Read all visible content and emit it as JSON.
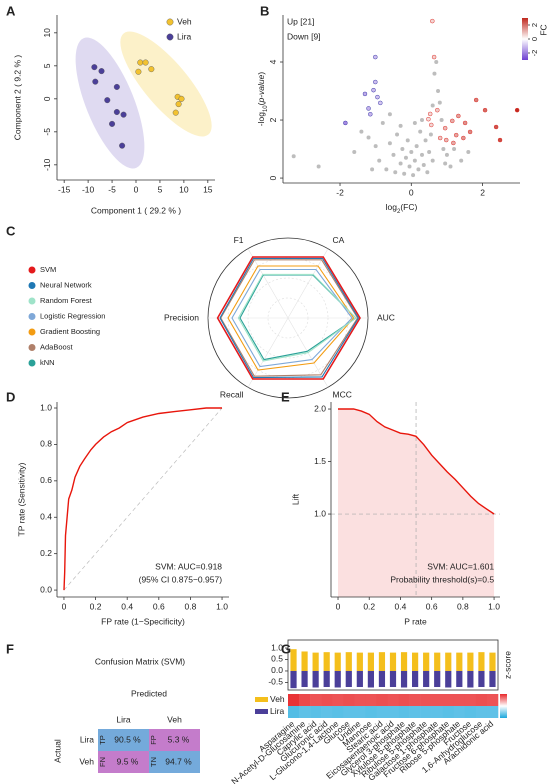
{
  "panel_labels": [
    "A",
    "B",
    "C",
    "D",
    "E",
    "F",
    "G"
  ],
  "chart_data": [
    {
      "type": "scatter",
      "xlabel": "Component 1 ( 29.2 % )",
      "ylabel": "Component 2 ( 9.2 % )",
      "xlim": [
        -16.5,
        16.5
      ],
      "ylim": [
        -12.3,
        12.7
      ],
      "xticks": [
        -15,
        -10,
        -5,
        0,
        5,
        10,
        15
      ],
      "yticks": [
        -10,
        -5,
        0,
        5,
        10
      ],
      "series": [
        {
          "name": "Veh",
          "color": "#f2c230",
          "x": [
            0.9,
            2,
            0.5,
            3.2,
            8.7,
            9.5,
            8.9,
            8.3
          ],
          "y": [
            5.5,
            5.5,
            4.1,
            4.5,
            0.3,
            0,
            -0.8,
            -2.1
          ]
        },
        {
          "name": "Lira",
          "color": "#4b3f99",
          "x": [
            -8.7,
            -7.2,
            -8.5,
            -4,
            -6,
            -4,
            -2.6,
            -5,
            -2.9
          ],
          "y": [
            4.8,
            4.2,
            2.6,
            1.8,
            -0.2,
            -2,
            -2.4,
            -3.8,
            -7.1
          ]
        }
      ]
    },
    {
      "type": "volcano",
      "xlabel": "log",
      "xlabel_sub": "2",
      "xlabel_rest": "(FC)",
      "ylabel": "-log",
      "ylabel_sub": "10",
      "ylabel_rest": "(",
      "ylabel_italic": "p-value",
      "ylabel_end": ")",
      "xlim": [
        -3.6,
        3.05
      ],
      "ylim": [
        -0.17,
        5.62
      ],
      "xticks": [
        -2,
        0,
        2
      ],
      "yticks": [
        0,
        2,
        4
      ],
      "colorscale": {
        "title": "FC",
        "lim": [
          -3,
          3
        ],
        "ticks": [
          -2,
          0,
          2
        ],
        "colors": [
          "#6d3fd0",
          "#ffffff",
          "#c0281e"
        ]
      },
      "series": [
        {
          "name": "Up [21]",
          "color": "#e0302a",
          "x": [
            0.59,
            0.64,
            0.53,
            0.56,
            0.95,
            1.15,
            1.32,
            1.51,
            1.26,
            1.46,
            1.82,
            2.07,
            2.49,
            2.38,
            2.97,
            0.81,
            0.98,
            1.18,
            0.73,
            1.65,
            0.48
          ],
          "y": [
            5.41,
            4.17,
            2.21,
            1.83,
            1.72,
            1.97,
            2.14,
            1.9,
            1.48,
            1.38,
            2.69,
            2.34,
            1.31,
            1.76,
            2.34,
            1.38,
            1.31,
            1.21,
            2.34,
            1.59,
            2.03
          ]
        },
        {
          "name": "Down [9]",
          "color": "#3a3aa8",
          "x": [
            -1.01,
            -1.01,
            -1.06,
            -0.95,
            -0.87,
            -1.85,
            -1.2,
            -1.3,
            -1.15
          ],
          "y": [
            4.17,
            3.31,
            3.03,
            2.79,
            2.59,
            1.9,
            2.4,
            2.9,
            2.2
          ]
        },
        {
          "color": "#bdbdbd",
          "x": [
            -3.3,
            -2.6,
            -1.6,
            -1.4,
            -1.2,
            -1.0,
            -0.9,
            -0.8,
            -0.7,
            -0.6,
            -0.5,
            -0.45,
            -0.4,
            -0.3,
            -0.25,
            -0.2,
            -0.15,
            -0.1,
            -0.05,
            0,
            0.05,
            0.1,
            0.15,
            0.2,
            0.25,
            0.3,
            0.35,
            0.4,
            0.45,
            0.5,
            0.55,
            0.6,
            0.65,
            0.7,
            0.75,
            0.8,
            0.85,
            0.9,
            0.95,
            1.0,
            1.1,
            1.2,
            1.4,
            1.6,
            0.6,
            -0.6,
            -1.1,
            0.3,
            -0.3,
            0.1
          ],
          "y": [
            0.75,
            0.4,
            0.9,
            1.6,
            1.4,
            1.1,
            0.6,
            1.9,
            0.3,
            1.2,
            0.8,
            0.2,
            1.5,
            0.5,
            1.0,
            0.15,
            0.7,
            1.3,
            0.4,
            0.9,
            0.1,
            0.6,
            1.1,
            0.3,
            1.6,
            0.8,
            0.45,
            1.3,
            0.2,
            0.9,
            1.5,
            0.6,
            3.6,
            4.0,
            3.0,
            2.6,
            2.0,
            1.0,
            0.5,
            0.8,
            0.4,
            1.0,
            0.6,
            0.9,
            2.5,
            2.2,
            0.3,
            2.0,
            1.8,
            1.9
          ]
        }
      ]
    },
    {
      "type": "radar",
      "axes": [
        "F1",
        "CA",
        "AUC",
        "MCC",
        "Recall",
        "Precision"
      ],
      "rlim": [
        0,
        1
      ],
      "grid": true,
      "series": [
        {
          "name": "SVM",
          "color": "#e41a1c",
          "values": [
            0.88,
            0.88,
            0.9,
            0.88,
            0.88,
            0.88
          ]
        },
        {
          "name": "Neural Network",
          "color": "#1f78b4",
          "values": [
            0.86,
            0.86,
            0.88,
            0.85,
            0.86,
            0.85
          ]
        },
        {
          "name": "Random Forest",
          "color": "#9fe3c9",
          "values": [
            0.63,
            0.63,
            0.85,
            0.5,
            0.62,
            0.62
          ]
        },
        {
          "name": "Logistic Regression",
          "color": "#7fa8d8",
          "values": [
            0.7,
            0.7,
            0.8,
            0.6,
            0.7,
            0.7
          ]
        },
        {
          "name": "Gradient Boosting",
          "color": "#f39c12",
          "values": [
            0.75,
            0.75,
            0.82,
            0.65,
            0.75,
            0.75
          ]
        },
        {
          "name": "AdaBoost",
          "color": "#b0806a",
          "values": [
            0.84,
            0.84,
            0.87,
            0.82,
            0.84,
            0.84
          ]
        },
        {
          "name": "kNN",
          "color": "#2aa198",
          "values": [
            0.62,
            0.62,
            0.85,
            0.48,
            0.6,
            0.6
          ]
        }
      ]
    },
    {
      "type": "line",
      "xlabel": "FP rate (1−Specificity)",
      "ylabel": "TP rate (Sensitivity)",
      "color": "#e8160c",
      "annotations": [
        "SVM: AUC=0.918",
        "(95% CI 0.875−0.957)"
      ],
      "xlim": [
        -0.044,
        1.044
      ],
      "ylim": [
        -0.038,
        1.033
      ],
      "xticks": [
        0,
        0.2,
        0.4,
        0.6,
        0.8,
        {
          "value": 1,
          "label": "1.0"
        }
      ],
      "yticks": [
        {
          "value": 0,
          "label": "0.0"
        },
        0.2,
        0.4,
        0.6,
        0.8,
        {
          "value": 1,
          "label": "1.0"
        }
      ],
      "x": [
        0,
        0.005,
        0.01,
        0.02,
        0.03,
        0.05,
        0.07,
        0.1,
        0.13,
        0.17,
        0.2,
        0.25,
        0.3,
        0.35,
        0.4,
        0.5,
        0.6,
        0.7,
        0.8,
        0.9,
        1.0
      ],
      "values": [
        0,
        0.1,
        0.3,
        0.4,
        0.5,
        0.55,
        0.62,
        0.68,
        0.72,
        0.77,
        0.8,
        0.84,
        0.87,
        0.89,
        0.92,
        0.95,
        0.97,
        0.98,
        0.99,
        1.0,
        1.0
      ]
    },
    {
      "type": "area",
      "xlabel": "P rate",
      "ylabel": "Lift",
      "color": "#e8160c",
      "fill": "#fbe0e0",
      "annotations": [
        "SVM: AUC=1.601",
        "Probability threshold(s)=0.5"
      ],
      "threshold": 0.5,
      "baseline": 1,
      "xlim": [
        -0.045,
        1.038
      ],
      "ylim": [
        0.21,
        2.067
      ],
      "xticks": [
        0,
        0.2,
        0.4,
        0.6,
        0.8,
        {
          "value": 1,
          "label": "1.0"
        }
      ],
      "yticks": [
        {
          "value": 1,
          "label": "1.0"
        },
        1.5,
        {
          "value": 2,
          "label": "2.0"
        }
      ],
      "x": [
        0,
        0.1,
        0.15,
        0.2,
        0.25,
        0.3,
        0.35,
        0.4,
        0.45,
        0.5,
        0.55,
        0.6,
        0.65,
        0.7,
        0.75,
        0.8,
        0.85,
        0.9,
        0.95,
        1.0
      ],
      "values": [
        2.0,
        2.0,
        1.98,
        1.95,
        1.88,
        1.83,
        1.8,
        1.77,
        1.76,
        1.74,
        1.66,
        1.56,
        1.48,
        1.4,
        1.33,
        1.25,
        1.17,
        1.1,
        1.05,
        1.0
      ]
    },
    {
      "type": "table",
      "title": "Confusion Matrix (SVM)",
      "col_title": "Predicted",
      "row_title": "Actual",
      "columns": [
        "Lira",
        "Veh"
      ],
      "rows": [
        "Lira",
        "Veh"
      ],
      "tags": [
        [
          "TP",
          "FP"
        ],
        [
          "FN",
          "TN"
        ]
      ],
      "cells": [
        [
          "90.5 %",
          "5.3 %"
        ],
        [
          "9.5 %",
          "94.7 %"
        ]
      ],
      "colors": [
        [
          "#74aadb",
          "#c47ccb"
        ],
        [
          "#c47ccb",
          "#74aadb"
        ]
      ]
    },
    {
      "type": "bar",
      "ylabel": "z-score",
      "ylim": [
        -0.83,
        1.35
      ],
      "yticks": [
        {
          "value": 1,
          "label": "1.0"
        },
        0.5,
        {
          "value": 0,
          "label": "0.0"
        },
        -0.5
      ],
      "heatmap_colors": [
        "#1aa7dc",
        "#ffffff",
        "#e8282b"
      ],
      "clim": [
        -1,
        1
      ],
      "categories": [
        "Asparagine",
        "N-Acetyl-D-Glucosamine",
        "Caprylic acid",
        "Glucuronic acid",
        "L-Glucono-1,4-Lactone",
        "Glucose",
        "Uridine",
        "Mannose",
        "Stearic acid",
        "Eicosapentaenoic acid",
        "Glycerol 3-phosphate",
        "Xylulose 5-phosphate",
        "Ribulose 5-phosphate",
        "Galactose 1-phosphate",
        "Fructose 6-phosphate",
        "Ribose 5-phosphate",
        "Fructose",
        "1,6-Anhydroglucose",
        "Arachidonic acid"
      ],
      "series": [
        {
          "name": "Veh",
          "color": "#f4bf1c",
          "values": [
            0.95,
            0.85,
            0.8,
            0.82,
            0.8,
            0.82,
            0.8,
            0.8,
            0.82,
            0.8,
            0.82,
            0.8,
            0.8,
            0.8,
            0.8,
            0.8,
            0.8,
            0.82,
            0.8
          ]
        },
        {
          "name": "Lira",
          "color": "#4b3f99",
          "values": [
            -0.75,
            -0.7,
            -0.72,
            -0.7,
            -0.72,
            -0.7,
            -0.7,
            -0.72,
            -0.7,
            -0.7,
            -0.72,
            -0.7,
            -0.7,
            -0.7,
            -0.72,
            -0.7,
            -0.72,
            -0.7,
            -0.7
          ]
        }
      ]
    }
  ]
}
